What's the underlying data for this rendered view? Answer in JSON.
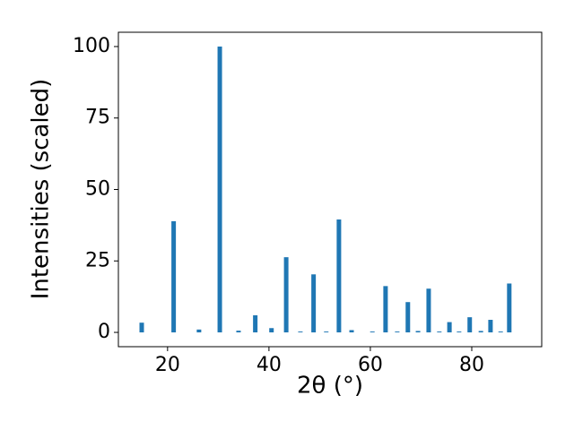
{
  "chart_data": {
    "type": "bar",
    "x": [
      14.9,
      21.2,
      26.2,
      30.3,
      34.0,
      37.3,
      40.5,
      43.4,
      46.2,
      48.8,
      51.3,
      53.8,
      56.3,
      60.4,
      63.0,
      65.3,
      67.4,
      69.4,
      71.5,
      73.6,
      75.6,
      77.5,
      79.6,
      81.8,
      83.7,
      85.7,
      87.4
    ],
    "values": [
      3.4,
      38.9,
      1.0,
      100,
      0.6,
      6.0,
      1.5,
      26.3,
      0.3,
      20.3,
      0.3,
      39.5,
      0.8,
      0.3,
      16.2,
      0.3,
      10.6,
      0.5,
      15.3,
      0.3,
      3.6,
      0.3,
      5.3,
      0.5,
      4.4,
      0.3,
      17.1
    ],
    "color": "#1f77b4",
    "xlabel": "2θ (°)",
    "ylabel": "Intensities (scaled)",
    "xlim": [
      10.3,
      93.8
    ],
    "ylim": [
      -5,
      105
    ],
    "xticks": [
      20,
      40,
      60,
      80
    ],
    "yticks": [
      0,
      25,
      50,
      75,
      100
    ],
    "grid": false
  }
}
